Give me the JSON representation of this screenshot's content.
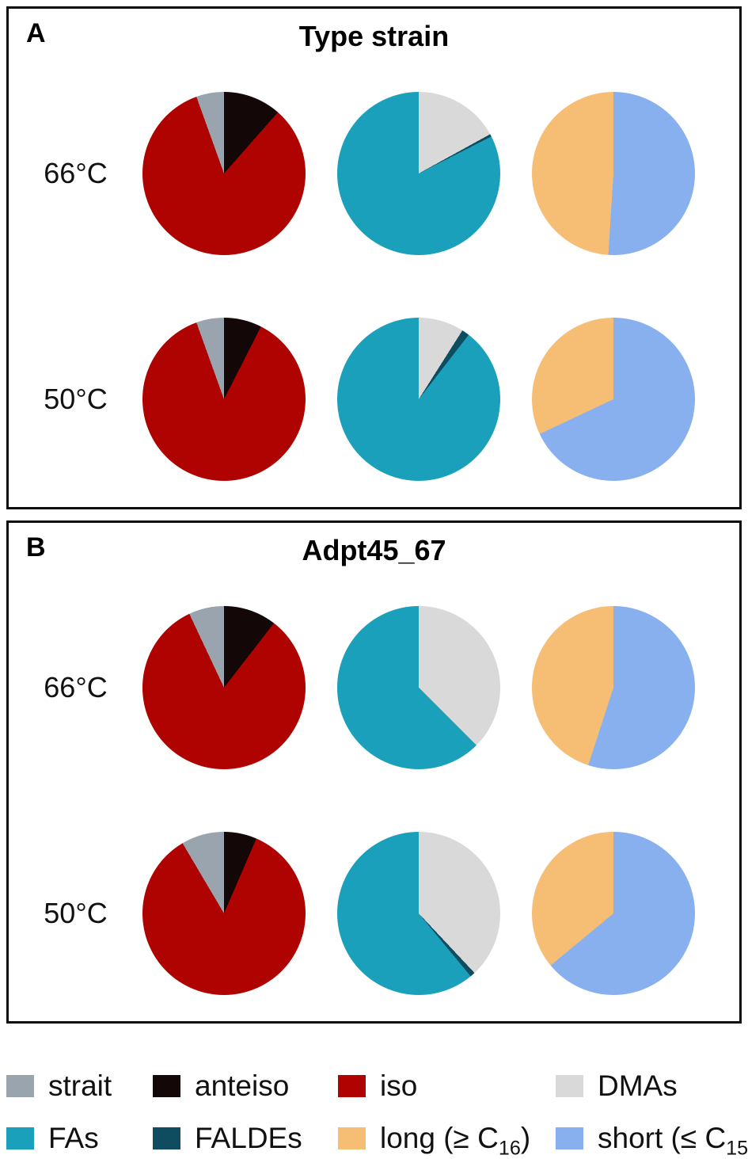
{
  "legend": {
    "rows": [
      [
        {
          "key": "strait",
          "pre": "strait",
          "sub": "",
          "post": ""
        },
        {
          "key": "anteiso",
          "pre": "anteiso",
          "sub": "",
          "post": ""
        },
        {
          "key": "iso",
          "pre": "iso",
          "sub": "",
          "post": ""
        },
        {
          "key": "DMAs",
          "pre": "DMAs",
          "sub": "",
          "post": ""
        }
      ],
      [
        {
          "key": "FAs",
          "pre": "FAs",
          "sub": "",
          "post": ""
        },
        {
          "key": "FALDEs",
          "pre": "FALDEs",
          "sub": "",
          "post": ""
        },
        {
          "key": "long",
          "pre": "long (≥ C",
          "sub": "16",
          "post": ")"
        },
        {
          "key": "short",
          "pre": "short (≤ C",
          "sub": "15",
          "post": ")"
        }
      ]
    ]
  },
  "chart_data": {
    "type": "pie",
    "layout": "2 panels x 2 temperature rows x 3 pies; legend bottom, 2 rows x 4 entries",
    "units": "percent",
    "colors": {
      "strait": "#99A4AE",
      "anteiso": "#130707",
      "iso": "#AE0300",
      "DMAs": "#D9D9D9",
      "FAs": "#1BA0BC",
      "FALDEs": "#0F4C60",
      "long": "#F6BD74",
      "short": "#88B0EF"
    },
    "panels": [
      {
        "corner_label": "A",
        "title": "Type strain",
        "rows": [
          {
            "temp": "66°C",
            "pies": [
              {
                "id": "branching",
                "slices": [
                  {
                    "key": "anteiso",
                    "value": 11.5
                  },
                  {
                    "key": "iso",
                    "value": 83
                  },
                  {
                    "key": "strait",
                    "value": 5.5
                  }
                ]
              },
              {
                "id": "fa-classes",
                "slices": [
                  {
                    "key": "DMAs",
                    "value": 17
                  },
                  {
                    "key": "FALDEs",
                    "value": 0.5
                  },
                  {
                    "key": "FAs",
                    "value": 82.5
                  }
                ]
              },
              {
                "id": "chain-length",
                "slices": [
                  {
                    "key": "short",
                    "value": 51
                  },
                  {
                    "key": "long",
                    "value": 49
                  }
                ]
              }
            ]
          },
          {
            "temp": "50°C",
            "pies": [
              {
                "id": "branching",
                "slices": [
                  {
                    "key": "anteiso",
                    "value": 7.5
                  },
                  {
                    "key": "iso",
                    "value": 87
                  },
                  {
                    "key": "strait",
                    "value": 5.5
                  }
                ]
              },
              {
                "id": "fa-classes",
                "slices": [
                  {
                    "key": "DMAs",
                    "value": 9
                  },
                  {
                    "key": "FALDEs",
                    "value": 1.5
                  },
                  {
                    "key": "FAs",
                    "value": 89.5
                  }
                ]
              },
              {
                "id": "chain-length",
                "slices": [
                  {
                    "key": "short",
                    "value": 68
                  },
                  {
                    "key": "long",
                    "value": 32
                  }
                ]
              }
            ]
          }
        ]
      },
      {
        "corner_label": "B",
        "title": "Adpt45_67",
        "rows": [
          {
            "temp": "66°C",
            "pies": [
              {
                "id": "branching",
                "slices": [
                  {
                    "key": "anteiso",
                    "value": 10.5
                  },
                  {
                    "key": "iso",
                    "value": 82.5
                  },
                  {
                    "key": "strait",
                    "value": 7
                  }
                ]
              },
              {
                "id": "fa-classes",
                "slices": [
                  {
                    "key": "DMAs",
                    "value": 37.5
                  },
                  {
                    "key": "FALDEs",
                    "value": 0
                  },
                  {
                    "key": "FAs",
                    "value": 62.5
                  }
                ]
              },
              {
                "id": "chain-length",
                "slices": [
                  {
                    "key": "short",
                    "value": 55
                  },
                  {
                    "key": "long",
                    "value": 45
                  }
                ]
              }
            ]
          },
          {
            "temp": "50°C",
            "pies": [
              {
                "id": "branching",
                "slices": [
                  {
                    "key": "anteiso",
                    "value": 6.5
                  },
                  {
                    "key": "iso",
                    "value": 85
                  },
                  {
                    "key": "strait",
                    "value": 8.5
                  }
                ]
              },
              {
                "id": "fa-classes",
                "slices": [
                  {
                    "key": "DMAs",
                    "value": 38
                  },
                  {
                    "key": "FALDEs",
                    "value": 1
                  },
                  {
                    "key": "FAs",
                    "value": 61
                  }
                ]
              },
              {
                "id": "chain-length",
                "slices": [
                  {
                    "key": "short",
                    "value": 64
                  },
                  {
                    "key": "long",
                    "value": 36
                  }
                ]
              }
            ]
          }
        ]
      }
    ]
  }
}
